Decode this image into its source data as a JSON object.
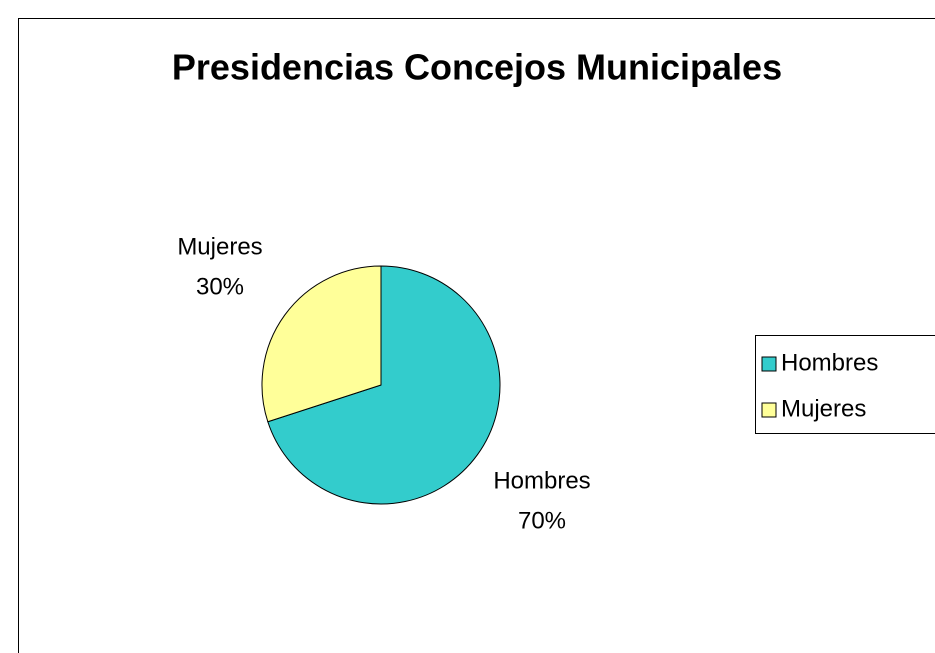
{
  "chart_data": {
    "type": "pie",
    "title": "Presidencias Concejos Municipales",
    "categories": [
      "Hombres",
      "Mujeres"
    ],
    "values": [
      70,
      30
    ],
    "value_labels": [
      "70%",
      "30%"
    ],
    "colors": [
      "#33cccc",
      "#ffff99"
    ],
    "legend": "right"
  }
}
